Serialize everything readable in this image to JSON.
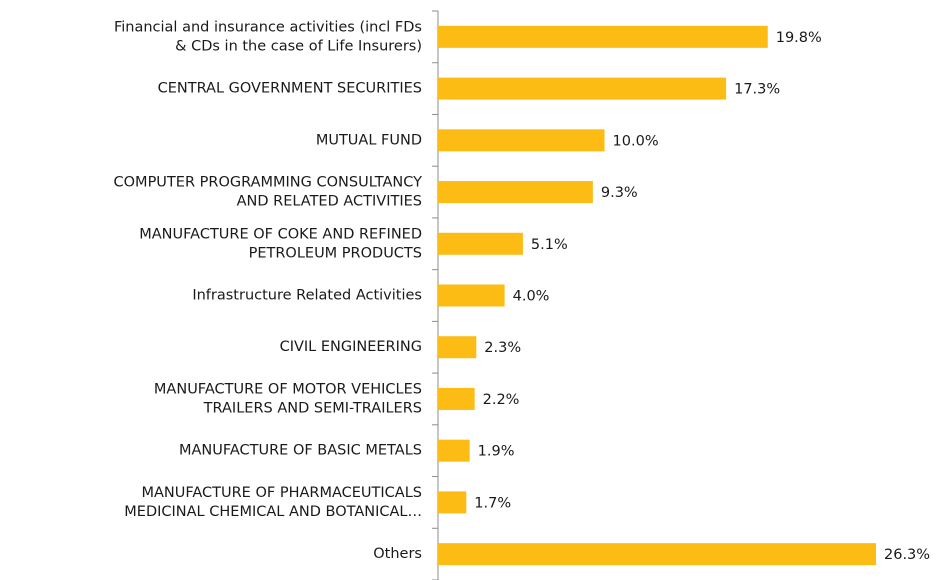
{
  "chart_data": {
    "type": "hbar",
    "categories": [
      "Financial and insurance activities (incl FDs\n& CDs in the case of Life Insurers)",
      "CENTRAL GOVERNMENT SECURITIES",
      "MUTUAL FUND",
      "COMPUTER PROGRAMMING  CONSULTANCY\nAND RELATED ACTIVITIES",
      "MANUFACTURE OF COKE AND REFINED\nPETROLEUM PRODUCTS",
      "Infrastructure Related Activities",
      "CIVIL ENGINEERING",
      "MANUFACTURE OF MOTOR VEHICLES\nTRAILERS AND SEMI-TRAILERS",
      "MANUFACTURE OF BASIC METALS",
      "MANUFACTURE OF PHARMACEUTICALS\nMEDICINAL CHEMICAL AND BOTANICAL…",
      "Others"
    ],
    "values": [
      19.8,
      17.3,
      10.0,
      9.3,
      5.1,
      4.0,
      2.3,
      2.2,
      1.9,
      1.7,
      26.3
    ],
    "value_labels": [
      "19.8%",
      "17.3%",
      "10.0%",
      "9.3%",
      "5.1%",
      "4.0%",
      "2.3%",
      "2.2%",
      "1.9%",
      "1.7%",
      "26.3%"
    ],
    "color": "#fcbc14"
  }
}
